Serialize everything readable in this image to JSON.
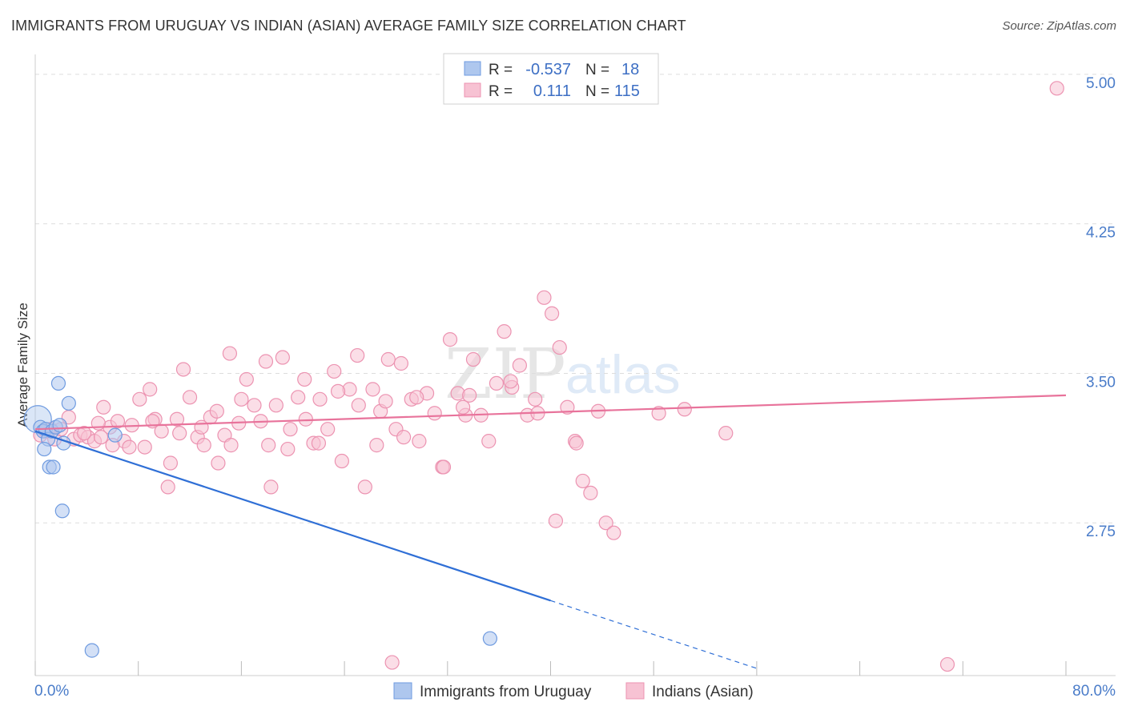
{
  "title": "IMMIGRANTS FROM URUGUAY VS INDIAN (ASIAN) AVERAGE FAMILY SIZE CORRELATION CHART",
  "source": "Source: ZipAtlas.com",
  "watermark": {
    "zip": "ZIP",
    "atlas": "atlas"
  },
  "colors": {
    "blue_fill": "#aec7ee",
    "blue_stroke": "#6f9be0",
    "blue_line": "#2f6fd6",
    "pink_fill": "#f7c2d3",
    "pink_stroke": "#ec93b1",
    "pink_line": "#e8739b",
    "grid": "#dddddd",
    "axis_label": "#4a7cc9"
  },
  "legend_box": {
    "rows": [
      {
        "r_label": "R =",
        "r_value": "-0.537",
        "n_label": "N =",
        "n_value": "18"
      },
      {
        "r_label": "R =",
        "r_value": "0.111",
        "n_label": "N =",
        "n_value": "115"
      }
    ]
  },
  "chart_data": {
    "type": "scatter",
    "title": "IMMIGRANTS FROM URUGUAY VS INDIAN (ASIAN) AVERAGE FAMILY SIZE CORRELATION CHART",
    "xlabel": "",
    "ylabel": "Average Family Size",
    "xlim": [
      0,
      80
    ],
    "ylim": [
      2.0,
      5.1
    ],
    "x_tick_labels": [
      "0.0%",
      "80.0%"
    ],
    "y_ticks": [
      2.75,
      3.5,
      4.25,
      5.0
    ],
    "y_tick_labels": [
      "2.75",
      "3.50",
      "4.25",
      "5.00"
    ],
    "legend_position": "bottom",
    "series": [
      {
        "name": "Immigrants from Uruguay",
        "r": -0.537,
        "n": 18,
        "trend": {
          "x0": 0,
          "y0": 3.21,
          "x1": 40,
          "y1": 2.36,
          "dash_to_x": 56,
          "dash_to_y": 2.02
        },
        "points": [
          {
            "x": 0.2,
            "y": 3.27,
            "big": true
          },
          {
            "x": 0.4,
            "y": 3.23
          },
          {
            "x": 0.6,
            "y": 3.21
          },
          {
            "x": 0.8,
            "y": 3.22
          },
          {
            "x": 1.0,
            "y": 3.17
          },
          {
            "x": 1.3,
            "y": 3.21
          },
          {
            "x": 1.6,
            "y": 3.23
          },
          {
            "x": 1.9,
            "y": 3.24
          },
          {
            "x": 2.2,
            "y": 3.15
          },
          {
            "x": 0.7,
            "y": 3.12
          },
          {
            "x": 1.1,
            "y": 3.03
          },
          {
            "x": 1.4,
            "y": 3.03
          },
          {
            "x": 1.8,
            "y": 3.45
          },
          {
            "x": 2.6,
            "y": 3.35
          },
          {
            "x": 2.1,
            "y": 2.81
          },
          {
            "x": 6.2,
            "y": 3.19
          },
          {
            "x": 4.4,
            "y": 2.11
          },
          {
            "x": 35.3,
            "y": 2.17
          }
        ]
      },
      {
        "name": "Indians (Asian)",
        "r": 0.111,
        "n": 115,
        "trend": {
          "x0": 0,
          "y0": 3.22,
          "x1": 80,
          "y1": 3.39
        },
        "points": [
          {
            "x": 0.4,
            "y": 3.19
          },
          {
            "x": 0.8,
            "y": 3.21
          },
          {
            "x": 1.2,
            "y": 3.22
          },
          {
            "x": 1.5,
            "y": 3.17
          },
          {
            "x": 2.0,
            "y": 3.22
          },
          {
            "x": 2.6,
            "y": 3.28
          },
          {
            "x": 3.0,
            "y": 3.17
          },
          {
            "x": 3.5,
            "y": 3.19
          },
          {
            "x": 4.1,
            "y": 3.18
          },
          {
            "x": 4.6,
            "y": 3.16
          },
          {
            "x": 5.1,
            "y": 3.18
          },
          {
            "x": 5.3,
            "y": 3.33
          },
          {
            "x": 5.8,
            "y": 3.23
          },
          {
            "x": 6.4,
            "y": 3.26
          },
          {
            "x": 6.9,
            "y": 3.16
          },
          {
            "x": 7.5,
            "y": 3.24
          },
          {
            "x": 8.1,
            "y": 3.37
          },
          {
            "x": 8.5,
            "y": 3.13
          },
          {
            "x": 8.9,
            "y": 3.42
          },
          {
            "x": 9.3,
            "y": 3.27
          },
          {
            "x": 9.8,
            "y": 3.21
          },
          {
            "x": 10.5,
            "y": 3.05
          },
          {
            "x": 11.0,
            "y": 3.27
          },
          {
            "x": 11.5,
            "y": 3.52
          },
          {
            "x": 12.0,
            "y": 3.38
          },
          {
            "x": 12.6,
            "y": 3.18
          },
          {
            "x": 13.1,
            "y": 3.14
          },
          {
            "x": 13.6,
            "y": 3.28
          },
          {
            "x": 14.1,
            "y": 3.31
          },
          {
            "x": 14.7,
            "y": 3.19
          },
          {
            "x": 15.2,
            "y": 3.14
          },
          {
            "x": 15.8,
            "y": 3.25
          },
          {
            "x": 16.4,
            "y": 3.47
          },
          {
            "x": 17.0,
            "y": 3.34
          },
          {
            "x": 17.5,
            "y": 3.26
          },
          {
            "x": 18.1,
            "y": 3.14
          },
          {
            "x": 18.7,
            "y": 3.34
          },
          {
            "x": 19.2,
            "y": 3.58
          },
          {
            "x": 19.8,
            "y": 3.22
          },
          {
            "x": 20.4,
            "y": 3.38
          },
          {
            "x": 21.0,
            "y": 3.27
          },
          {
            "x": 21.6,
            "y": 3.15
          },
          {
            "x": 22.1,
            "y": 3.37
          },
          {
            "x": 22.7,
            "y": 3.22
          },
          {
            "x": 23.2,
            "y": 3.51
          },
          {
            "x": 23.8,
            "y": 3.06
          },
          {
            "x": 24.4,
            "y": 3.42
          },
          {
            "x": 25.0,
            "y": 3.59
          },
          {
            "x": 25.6,
            "y": 2.93
          },
          {
            "x": 26.2,
            "y": 3.42
          },
          {
            "x": 26.8,
            "y": 3.31
          },
          {
            "x": 27.4,
            "y": 3.57
          },
          {
            "x": 28.0,
            "y": 3.22
          },
          {
            "x": 28.6,
            "y": 3.18
          },
          {
            "x": 29.2,
            "y": 3.37
          },
          {
            "x": 29.8,
            "y": 3.16
          },
          {
            "x": 30.4,
            "y": 3.4
          },
          {
            "x": 31.0,
            "y": 3.3
          },
          {
            "x": 31.6,
            "y": 3.03
          },
          {
            "x": 32.2,
            "y": 3.67
          },
          {
            "x": 32.8,
            "y": 3.4
          },
          {
            "x": 33.4,
            "y": 3.29
          },
          {
            "x": 34.0,
            "y": 3.57
          },
          {
            "x": 34.6,
            "y": 3.29
          },
          {
            "x": 35.2,
            "y": 3.16
          },
          {
            "x": 35.8,
            "y": 3.45
          },
          {
            "x": 36.4,
            "y": 3.71
          },
          {
            "x": 37.0,
            "y": 3.43
          },
          {
            "x": 37.6,
            "y": 3.54
          },
          {
            "x": 38.2,
            "y": 3.29
          },
          {
            "x": 38.8,
            "y": 3.37
          },
          {
            "x": 39.5,
            "y": 3.88
          },
          {
            "x": 40.1,
            "y": 3.8
          },
          {
            "x": 40.7,
            "y": 3.63
          },
          {
            "x": 41.3,
            "y": 3.33
          },
          {
            "x": 41.9,
            "y": 3.16
          },
          {
            "x": 42.5,
            "y": 2.96
          },
          {
            "x": 43.1,
            "y": 2.9
          },
          {
            "x": 43.7,
            "y": 3.31
          },
          {
            "x": 44.3,
            "y": 2.75
          },
          {
            "x": 44.9,
            "y": 2.7
          },
          {
            "x": 14.2,
            "y": 3.05
          },
          {
            "x": 18.3,
            "y": 2.93
          },
          {
            "x": 26.5,
            "y": 3.14
          },
          {
            "x": 28.4,
            "y": 3.55
          },
          {
            "x": 31.7,
            "y": 3.03
          },
          {
            "x": 33.2,
            "y": 3.33
          },
          {
            "x": 10.3,
            "y": 2.93
          },
          {
            "x": 15.1,
            "y": 3.6
          },
          {
            "x": 17.9,
            "y": 3.56
          },
          {
            "x": 20.9,
            "y": 3.47
          },
          {
            "x": 22.0,
            "y": 3.15
          },
          {
            "x": 25.1,
            "y": 3.34
          },
          {
            "x": 27.2,
            "y": 3.36
          },
          {
            "x": 29.6,
            "y": 3.38
          },
          {
            "x": 33.7,
            "y": 3.39
          },
          {
            "x": 36.9,
            "y": 3.46
          },
          {
            "x": 39.0,
            "y": 3.3
          },
          {
            "x": 40.4,
            "y": 2.76
          },
          {
            "x": 6.0,
            "y": 3.14
          },
          {
            "x": 7.3,
            "y": 3.13
          },
          {
            "x": 9.1,
            "y": 3.26
          },
          {
            "x": 11.2,
            "y": 3.2
          },
          {
            "x": 12.9,
            "y": 3.23
          },
          {
            "x": 16.0,
            "y": 3.37
          },
          {
            "x": 19.6,
            "y": 3.12
          },
          {
            "x": 23.5,
            "y": 3.41
          },
          {
            "x": 42.0,
            "y": 3.15
          },
          {
            "x": 48.4,
            "y": 3.3
          },
          {
            "x": 50.4,
            "y": 3.32
          },
          {
            "x": 53.6,
            "y": 3.2
          },
          {
            "x": 79.3,
            "y": 4.93
          },
          {
            "x": 27.7,
            "y": 2.05
          },
          {
            "x": 70.8,
            "y": 2.04
          },
          {
            "x": 3.8,
            "y": 3.2
          },
          {
            "x": 4.9,
            "y": 3.25
          }
        ]
      }
    ]
  }
}
